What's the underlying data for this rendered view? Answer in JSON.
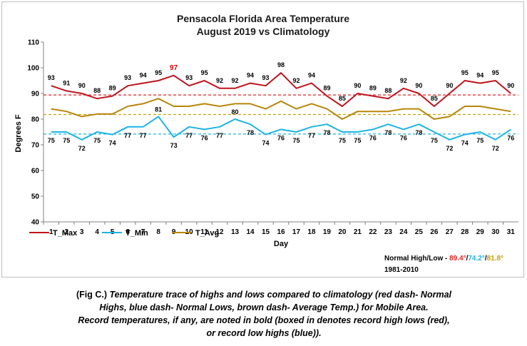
{
  "chart_data": {
    "type": "line",
    "title": "Pensacola Florida Area Temperature",
    "subtitle": "August 2019 vs Climatology",
    "xlabel": "Day",
    "ylabel": "Degrees F",
    "ylim": [
      40,
      110
    ],
    "yticks": [
      "40",
      "50",
      "60",
      "70",
      "80",
      "90",
      "100",
      "110"
    ],
    "categories": [
      "1",
      "2",
      "3",
      "4",
      "5",
      "6",
      "7",
      "8",
      "9",
      "10",
      "11",
      "12",
      "13",
      "14",
      "15",
      "16",
      "17",
      "18",
      "19",
      "20",
      "21",
      "22",
      "23",
      "24",
      "25",
      "26",
      "27",
      "28",
      "29",
      "30",
      "31"
    ],
    "grid": false,
    "legend_position": "bottom-left",
    "series": [
      {
        "name": "T_Max",
        "color": "#c0141e",
        "values": [
          93,
          91,
          90,
          88,
          89,
          93,
          94,
          95,
          97,
          93,
          95,
          92,
          92,
          94,
          93,
          98,
          92,
          94,
          89,
          85,
          90,
          89,
          88,
          92,
          90,
          85,
          90,
          95,
          94,
          95,
          90
        ],
        "labels": [
          "93",
          "91",
          "90",
          "88",
          "89",
          "93",
          "94",
          "95",
          "97",
          "93",
          "95",
          "92",
          "92",
          "94",
          "93",
          "98",
          "92",
          "94",
          "89",
          "85",
          "90",
          "89",
          "88",
          "92",
          "90",
          "85",
          "90",
          "95",
          "94",
          "95",
          "90"
        ],
        "record_index": 8
      },
      {
        "name": "T_Min",
        "color": "#1eb4e6",
        "values": [
          75,
          75,
          72,
          75,
          74,
          77,
          77,
          81,
          73,
          77,
          76,
          77,
          80,
          78,
          74,
          76,
          75,
          77,
          78,
          75,
          75,
          76,
          78,
          76,
          78,
          75,
          72,
          74,
          75,
          72,
          76
        ],
        "labels": [
          "75",
          "75",
          "72",
          "75",
          "74",
          "77",
          "77",
          "81",
          "73",
          "77",
          "76",
          "77",
          "80",
          "78",
          "74",
          "76",
          "75",
          "77",
          "78",
          "75",
          "75",
          "76",
          "78",
          "76",
          "78",
          "75",
          "72",
          "74",
          "75",
          "72",
          "76"
        ]
      },
      {
        "name": "T_Avg",
        "color": "#b8860b",
        "values": [
          84,
          83,
          81,
          82,
          82,
          85,
          86,
          88,
          85,
          85,
          86,
          85,
          86,
          86,
          84,
          87,
          84,
          86,
          84,
          80,
          83,
          83,
          83,
          84,
          84,
          80,
          81,
          85,
          85,
          84,
          83
        ]
      }
    ],
    "normals": [
      {
        "name": "Normal High",
        "value": 89.4,
        "label": "89.4°",
        "color": "#e82020"
      },
      {
        "name": "Normal Low",
        "value": 74.2,
        "label": "74.2°",
        "color": "#1eb4e6"
      },
      {
        "name": "Average",
        "value": 81.8,
        "label": "81.8°",
        "color": "#c8a000"
      }
    ],
    "normal_prefix": "Normal High/Low - ",
    "normal_sep": "/",
    "normal_period": "1981-2010"
  },
  "caption": {
    "fig": "(Fig C.) ",
    "line1": "Temperature trace of highs and lows compared to climatology (red dash- Normal",
    "line2": "Highs, blue dash- Normal Lows, brown dash- Average Temp.) for Mobile Area.",
    "line3": "Record temperatures, if any, are noted in bold (boxed in denotes record high lows (red),",
    "line4": "or record low highs (blue))."
  }
}
